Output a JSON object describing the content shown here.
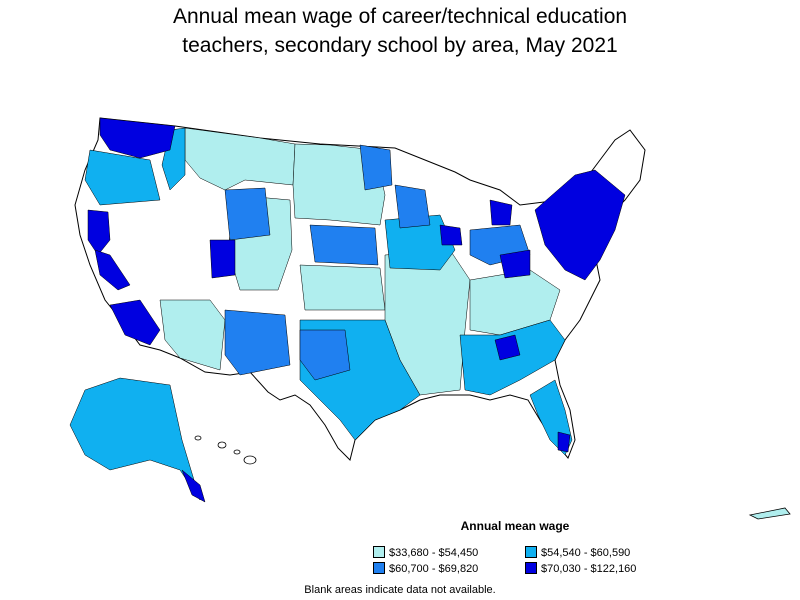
{
  "title": {
    "line1": "Annual mean wage of career/technical education",
    "line2": "teachers, secondary school by area, May 2021"
  },
  "legend": {
    "title": "Annual mean wage",
    "items": [
      {
        "label": "$33,680 - $54,450",
        "color": "#b0eeee"
      },
      {
        "label": "$54,540 - $60,590",
        "color": "#10b0f0"
      },
      {
        "label": "$60,700 - $69,820",
        "color": "#2080f0"
      },
      {
        "label": "$70,030 - $122,160",
        "color": "#0000e0"
      }
    ]
  },
  "footnote": "Blank areas indicate data not available.",
  "colors": {
    "blank": "#ffffff",
    "border": "#000000"
  }
}
